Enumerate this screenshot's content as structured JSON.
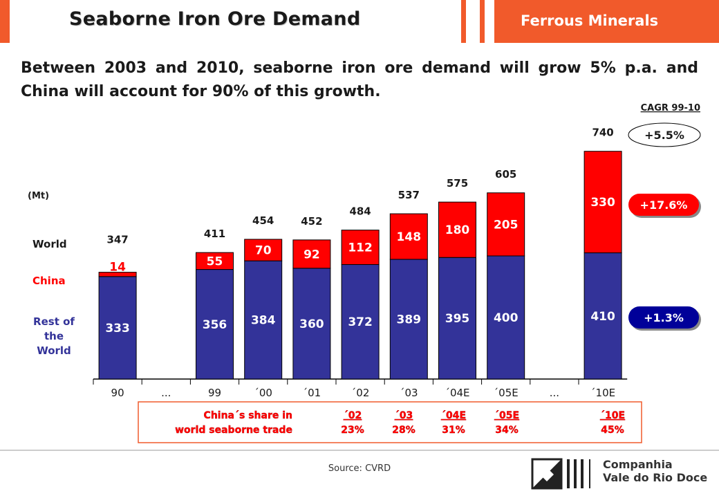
{
  "header": {
    "title": "Seaborne Iron Ore Demand",
    "section": "Ferrous Minerals"
  },
  "headline": "Between 2003 and 2010, seaborne iron ore demand will grow 5% p.a. and China will account for 90% of this growth.",
  "colors": {
    "accent": "#f15a2b",
    "china": "#ff0000",
    "rest": "#333399"
  },
  "chart_data": {
    "type": "bar",
    "stacked": true,
    "unit_label": "(Mt)",
    "categories": [
      "90",
      "...",
      "99",
      "´00",
      "´01",
      "´02",
      "´03",
      "´04E",
      "´05E",
      "...",
      "´10E"
    ],
    "series": [
      {
        "name": "Rest of the World",
        "values": [
          333,
          null,
          356,
          384,
          360,
          372,
          389,
          395,
          400,
          null,
          410
        ]
      },
      {
        "name": "China",
        "values": [
          14,
          null,
          55,
          70,
          92,
          112,
          148,
          180,
          205,
          null,
          330
        ]
      }
    ],
    "totals": [
      347,
      null,
      411,
      454,
      452,
      484,
      537,
      575,
      605,
      null,
      740
    ],
    "row_labels": {
      "world": "World",
      "china": "China",
      "rest": "Rest of the World"
    },
    "cagr": {
      "title": "CAGR 99-10",
      "world": "+5.5%",
      "china": "+17.6%",
      "rest": "+1.3%"
    },
    "share_table": {
      "label_line1": "China´s share in",
      "label_line2": "world seaborne trade",
      "years": [
        "´02",
        "´03",
        "´04E",
        "´05E",
        "´10E"
      ],
      "values": [
        "23%",
        "28%",
        "31%",
        "34%",
        "45%"
      ]
    }
  },
  "footer": {
    "source": "Source: CVRD",
    "company_line1": "Companhia",
    "company_line2": "Vale do Rio Doce"
  }
}
